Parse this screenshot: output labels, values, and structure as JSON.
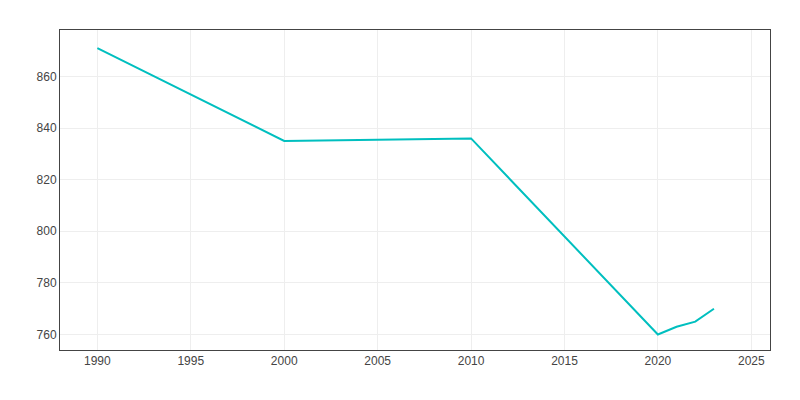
{
  "chart_data": {
    "type": "line",
    "x": [
      1990,
      2000,
      2010,
      2020,
      2021,
      2022,
      2023
    ],
    "values": [
      871,
      835,
      836,
      760,
      763,
      765,
      770
    ],
    "color": "#00bfbf",
    "xlim": [
      1988,
      2026
    ],
    "ylim": [
      754,
      878
    ],
    "xticks": [
      1990,
      1995,
      2000,
      2005,
      2010,
      2015,
      2020,
      2025
    ],
    "yticks": [
      760,
      780,
      800,
      820,
      840,
      860
    ],
    "grid": true
  }
}
